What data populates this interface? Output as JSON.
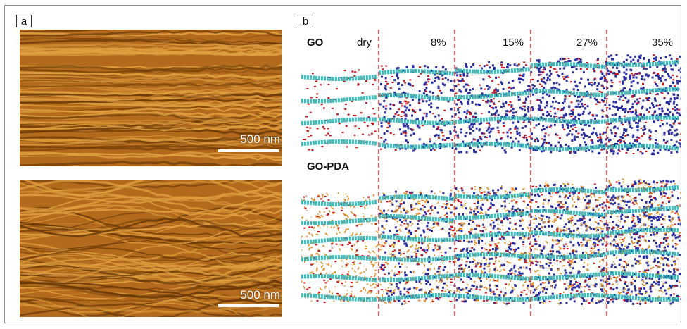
{
  "panels": {
    "a": {
      "label": "a",
      "images": [
        {
          "scale_label": "500 nm"
        },
        {
          "scale_label": "500 nm"
        }
      ]
    },
    "b": {
      "label": "b",
      "rows": [
        "GO",
        "GO-PDA"
      ],
      "columns": [
        "dry",
        "8%",
        "15%",
        "27%",
        "35%"
      ]
    }
  },
  "colors": {
    "graphene": "#2ab5b5",
    "water": "#2b2f9e",
    "oxygen": "#c4161c",
    "pda": "#e08a1e",
    "divider": "#e03030",
    "sem_light": "#e0a040",
    "sem_dark": "#6a3a08"
  }
}
